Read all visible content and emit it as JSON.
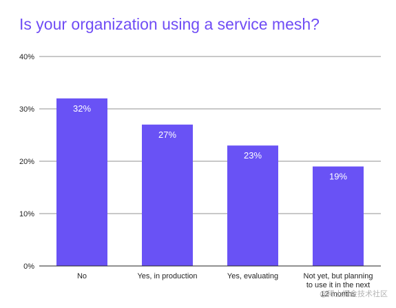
{
  "chart_data": {
    "type": "bar",
    "title": "Is your organization using a service mesh?",
    "categories": [
      "No",
      "Yes, in production",
      "Yes, evaluating",
      "Not yet, but planning to use it in the next 12 months"
    ],
    "category_lines": [
      [
        "No"
      ],
      [
        "Yes, in production"
      ],
      [
        "Yes, evaluating"
      ],
      [
        "Not yet, but planning",
        "to use it in the next",
        "12 months"
      ]
    ],
    "values": [
      32,
      27,
      23,
      19
    ],
    "value_labels": [
      "32%",
      "27%",
      "23%",
      "19%"
    ],
    "ylim": [
      0,
      40
    ],
    "yticks": [
      0,
      10,
      20,
      30,
      40
    ],
    "ytick_labels": [
      "0%",
      "10%",
      "20%",
      "30%",
      "40%"
    ],
    "xlabel": "",
    "ylabel": "",
    "grid": true,
    "bar_color": "#6952f5",
    "title_color": "#6f4cf5"
  },
  "watermark": "@稀土掘金技术社区"
}
